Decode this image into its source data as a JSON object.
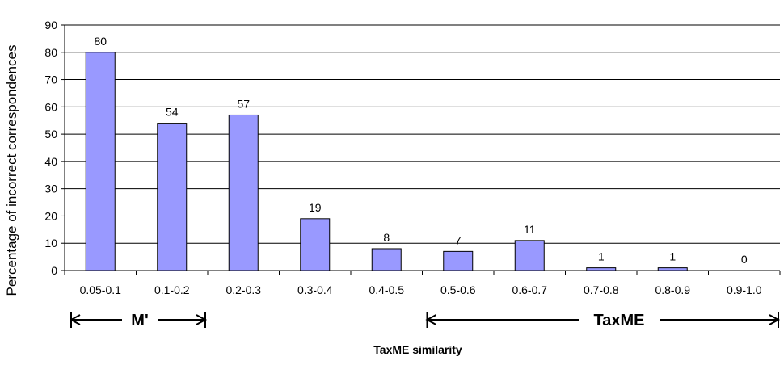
{
  "chart_data": {
    "type": "bar",
    "title": "",
    "xlabel": "TaxME similarity",
    "ylabel": "Percentage of incorrect correspondences",
    "categories": [
      "0.05-0.1",
      "0.1-0.2",
      "0.2-0.3",
      "0.3-0.4",
      "0.4-0.5",
      "0.5-0.6",
      "0.6-0.7",
      "0.7-0.8",
      "0.8-0.9",
      "0.9-1.0"
    ],
    "values": [
      80,
      54,
      57,
      19,
      8,
      7,
      11,
      1,
      1,
      0
    ],
    "data_labels": [
      "80",
      "54",
      "57",
      "19",
      "8",
      "7",
      "11",
      "1",
      "1",
      "0"
    ],
    "ylim": [
      0,
      90
    ],
    "yticks": [
      0,
      10,
      20,
      30,
      40,
      50,
      60,
      70,
      80,
      90
    ],
    "ytick_labels": [
      "0",
      "10",
      "20",
      "30",
      "40",
      "50",
      "60",
      "70",
      "80",
      "90"
    ],
    "grid": true,
    "legend": "none",
    "bar_color": "#9999ff",
    "annotations": [
      {
        "text": "M'",
        "from_category": "0.05-0.1",
        "to_category": "0.1-0.2"
      },
      {
        "text": "TaxME",
        "from_category": "0.5-0.6",
        "to_category": "0.9-1.0"
      }
    ]
  }
}
